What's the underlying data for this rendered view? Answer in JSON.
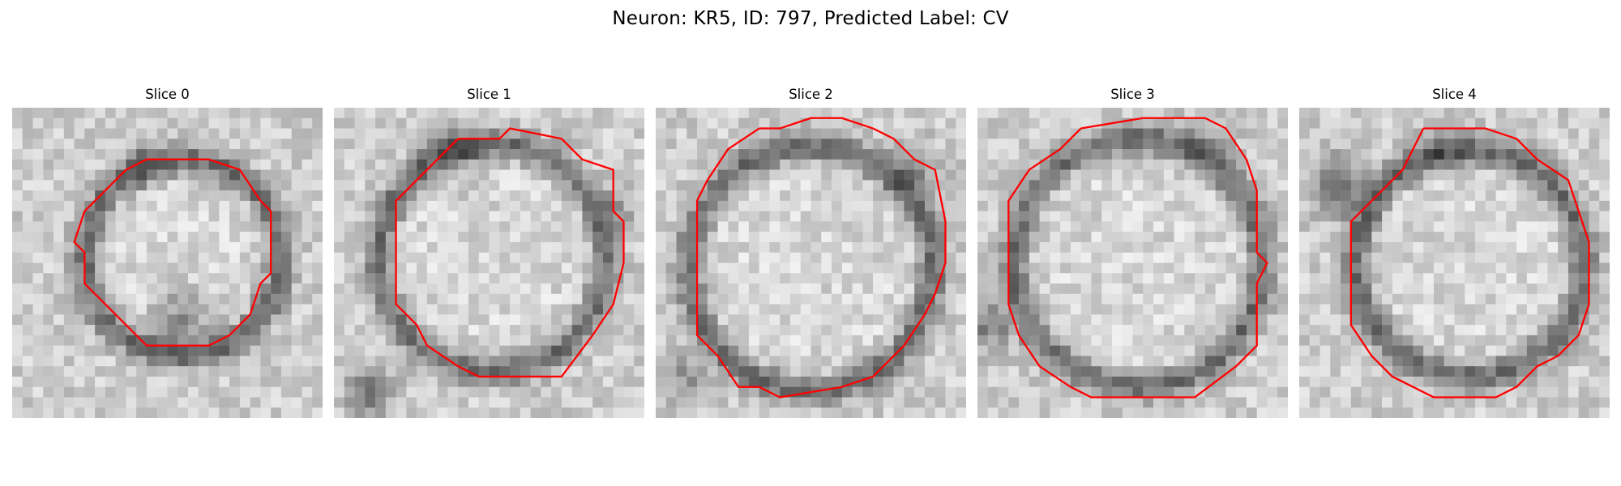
{
  "figure": {
    "title": "Neuron: KR5, ID: 797, Predicted Label: CV",
    "contour_color": "#ff0000",
    "colormap": "grayscale",
    "panels": [
      {
        "title": "Slice 0"
      },
      {
        "title": "Slice 1"
      },
      {
        "title": "Slice 2"
      },
      {
        "title": "Slice 3"
      },
      {
        "title": "Slice 4"
      }
    ]
  }
}
